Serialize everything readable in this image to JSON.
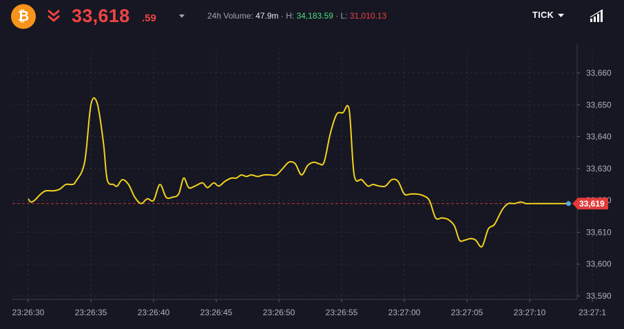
{
  "header": {
    "coin_symbol": "₿",
    "price_main": "33,618",
    "price_decimals": ".59",
    "stats": {
      "volume_label": "24h Volume:",
      "volume_value": "47.9m",
      "sep1": " · ",
      "high_label": "H:",
      "high_value": "34,183.59",
      "sep2": " · ",
      "low_label": "L:",
      "low_value": "31,010.13"
    },
    "interval_label": "TICK"
  },
  "colors": {
    "background": "#161722",
    "line": "#f5d320",
    "accent_red": "#ef4444",
    "accent_green": "#4ade80",
    "dot": "#5aa9e6",
    "coin": "#f7931a"
  },
  "icons": {
    "coin": "bitcoin-icon",
    "trend": "double-chevron-down-icon",
    "signal": "signal-bars-icon"
  },
  "chart_data": {
    "type": "line",
    "x_ticks": [
      "23:26:30",
      "23:26:35",
      "23:26:40",
      "23:26:45",
      "23:26:50",
      "23:26:55",
      "23:27:00",
      "23:27:05",
      "23:27:10",
      "23:27:1"
    ],
    "y_ticks": [
      "33,590",
      "33,600",
      "33,610",
      "33,620",
      "33,630",
      "33,640",
      "33,650",
      "33,660"
    ],
    "ylim": [
      33585,
      33667
    ],
    "xlim": [
      0,
      44.9
    ],
    "current_value_label": "33,619",
    "current_value": 33619,
    "grid": true,
    "series": [
      {
        "x": [
          0,
          0.2,
          0.5,
          1.0,
          1.4,
          2.0,
          2.5,
          3.0,
          3.5,
          3.8,
          4.5,
          5.0,
          5.5,
          6.0,
          6.3,
          6.8,
          7.1,
          7.5,
          8.0,
          8.5,
          9.0,
          9.5,
          10.0,
          10.5,
          11.0,
          11.5,
          12.0,
          12.4,
          12.8,
          13.3,
          13.9,
          14.3,
          14.8,
          15.2,
          15.7,
          16.2,
          16.6,
          17.0,
          17.4,
          17.8,
          18.3,
          18.8,
          19.3,
          19.8,
          20.3,
          20.8,
          21.3,
          21.8,
          22.3,
          22.8,
          23.2,
          23.6,
          24.1,
          24.6,
          25.1,
          25.6,
          26.0,
          26.6,
          27.1,
          27.5,
          28.0,
          28.5,
          29.0,
          29.5,
          30.0,
          30.5,
          31.0,
          31.5,
          32.0,
          32.5,
          33.0,
          33.5,
          34.0,
          34.4,
          34.8,
          35.3,
          35.7,
          36.2,
          36.7,
          37.2,
          37.8,
          38.3,
          38.8,
          39.3,
          39.7,
          40.1,
          40.6,
          41.1,
          41.6,
          42.1,
          42.6,
          43.1
        ],
        "y": [
          33620.5,
          33619.5,
          33620.0,
          33622.0,
          33623.0,
          33623.0,
          33623.5,
          33625.0,
          33625.0,
          33626.0,
          33632.0,
          33650.0,
          33650.5,
          33638.0,
          33626.5,
          33625.0,
          33624.5,
          33626.5,
          33625.0,
          33621.0,
          33619.0,
          33620.5,
          33620.0,
          33625.0,
          33621.0,
          33621.0,
          33622.0,
          33627.0,
          33624.0,
          33624.5,
          33625.5,
          33624.0,
          33625.5,
          33624.5,
          33626.0,
          33627.0,
          33627.0,
          33628.0,
          33627.5,
          33628.0,
          33627.5,
          33628.0,
          33628.0,
          33628.0,
          33630.0,
          33632.0,
          33631.5,
          33628.0,
          33631.0,
          33632.0,
          33631.5,
          33632.0,
          33641.0,
          33647.0,
          33647.5,
          33648.5,
          33628.0,
          33626.5,
          33624.5,
          33625.0,
          33624.5,
          33624.5,
          33626.5,
          33626.0,
          33622.0,
          33622.0,
          33622.0,
          33621.5,
          33620.0,
          33614.5,
          33614.5,
          33614.0,
          33612.0,
          33607.5,
          33607.5,
          33608.0,
          33607.5,
          33605.5,
          33611.0,
          33612.5,
          33617.0,
          33619.0,
          33619.0,
          33619.5,
          33619.0,
          33619.0,
          33619.0,
          33619.0,
          33619.0,
          33619.0,
          33619.0,
          33619.0
        ]
      }
    ]
  }
}
